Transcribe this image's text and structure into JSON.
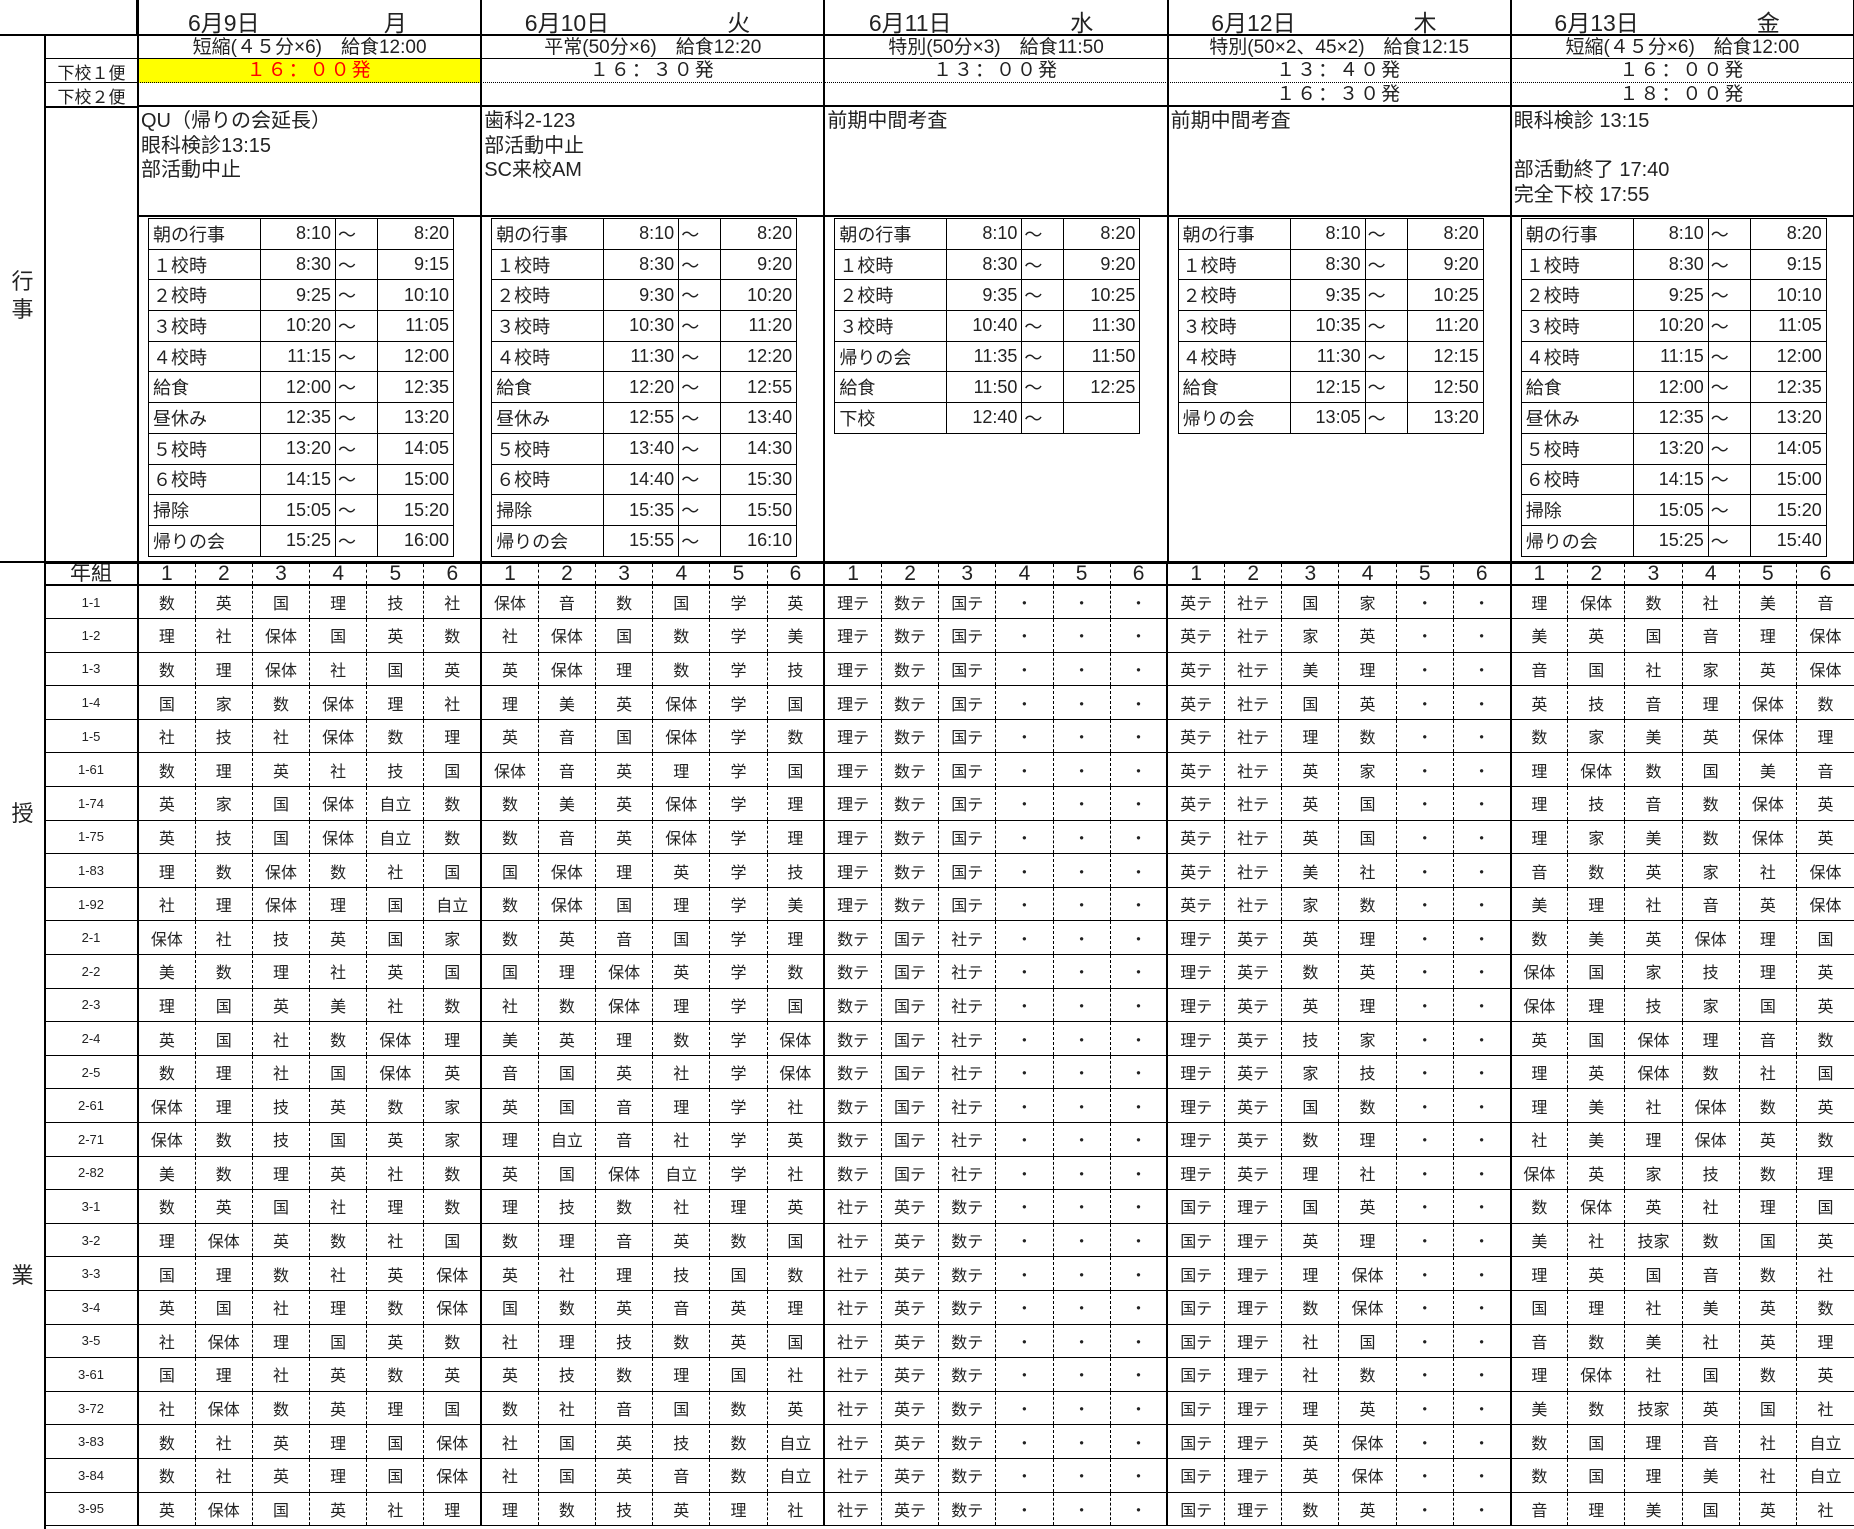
{
  "labels": {
    "bus1": "下校１便",
    "bus2": "下校２便",
    "section_events": [
      "行",
      "事"
    ],
    "section_classes_1": "授",
    "section_classes_2": "業",
    "class_header": "年組",
    "periods": [
      "1",
      "2",
      "3",
      "4",
      "5",
      "6"
    ]
  },
  "colors": {
    "highlight_bg": "#ffff00",
    "highlight_text": "#ff0000"
  },
  "days": [
    {
      "date": "6月9日",
      "weekday": "月",
      "mode": "短縮(４５分×6)　給食12:00",
      "bus1": "１６：００発",
      "bus1_highlight": true,
      "bus2": "",
      "notes": [
        "QU（帰りの会延長）",
        "眼科検診13:15",
        "部活動中止"
      ],
      "schedule": [
        [
          "朝の行事",
          "8:10",
          "～",
          "8:20"
        ],
        [
          "１校時",
          "8:30",
          "～",
          "9:15"
        ],
        [
          "２校時",
          "9:25",
          "～",
          "10:10"
        ],
        [
          "３校時",
          "10:20",
          "～",
          "11:05"
        ],
        [
          "４校時",
          "11:15",
          "～",
          "12:00"
        ],
        [
          "給食",
          "12:00",
          "～",
          "12:35"
        ],
        [
          "昼休み",
          "12:35",
          "～",
          "13:20"
        ],
        [
          "５校時",
          "13:20",
          "～",
          "14:05"
        ],
        [
          "６校時",
          "14:15",
          "～",
          "15:00"
        ],
        [
          "掃除",
          "15:05",
          "～",
          "15:20"
        ],
        [
          "帰りの会",
          "15:25",
          "～",
          "16:00"
        ]
      ]
    },
    {
      "date": "6月10日",
      "weekday": "火",
      "mode": "平常(50分×6)　給食12:20",
      "bus1": "１６：３０発",
      "bus1_highlight": false,
      "bus2": "",
      "notes": [
        "歯科2-123",
        "部活動中止",
        "SC来校AM"
      ],
      "schedule": [
        [
          "朝の行事",
          "8:10",
          "～",
          "8:20"
        ],
        [
          "１校時",
          "8:30",
          "～",
          "9:20"
        ],
        [
          "２校時",
          "9:30",
          "～",
          "10:20"
        ],
        [
          "３校時",
          "10:30",
          "～",
          "11:20"
        ],
        [
          "４校時",
          "11:30",
          "～",
          "12:20"
        ],
        [
          "給食",
          "12:20",
          "～",
          "12:55"
        ],
        [
          "昼休み",
          "12:55",
          "～",
          "13:40"
        ],
        [
          "５校時",
          "13:40",
          "～",
          "14:30"
        ],
        [
          "６校時",
          "14:40",
          "～",
          "15:30"
        ],
        [
          "掃除",
          "15:35",
          "～",
          "15:50"
        ],
        [
          "帰りの会",
          "15:55",
          "～",
          "16:10"
        ]
      ]
    },
    {
      "date": "6月11日",
      "weekday": "水",
      "mode": "特別(50分×3)　給食11:50",
      "bus1": "１３：００発",
      "bus1_highlight": false,
      "bus2": "",
      "notes": [
        "前期中間考査"
      ],
      "schedule": [
        [
          "朝の行事",
          "8:10",
          "～",
          "8:20"
        ],
        [
          "１校時",
          "8:30",
          "～",
          "9:20"
        ],
        [
          "２校時",
          "9:35",
          "～",
          "10:25"
        ],
        [
          "３校時",
          "10:40",
          "～",
          "11:30"
        ],
        [
          "帰りの会",
          "11:35",
          "～",
          "11:50"
        ],
        [
          "給食",
          "11:50",
          "～",
          "12:25"
        ],
        [
          "下校",
          "12:40",
          "～",
          ""
        ]
      ]
    },
    {
      "date": "6月12日",
      "weekday": "木",
      "mode": "特別(50×2、45×2)　給食12:15",
      "bus1": "１３：４０発",
      "bus1_highlight": false,
      "bus2": "１６：３０発",
      "notes": [
        "前期中間考査"
      ],
      "schedule": [
        [
          "朝の行事",
          "8:10",
          "～",
          "8:20"
        ],
        [
          "１校時",
          "8:30",
          "～",
          "9:20"
        ],
        [
          "２校時",
          "9:35",
          "～",
          "10:25"
        ],
        [
          "３校時",
          "10:35",
          "～",
          "11:20"
        ],
        [
          "４校時",
          "11:30",
          "～",
          "12:15"
        ],
        [
          "給食",
          "12:15",
          "～",
          "12:50"
        ],
        [
          "帰りの会",
          "13:05",
          "～",
          "13:20"
        ]
      ]
    },
    {
      "date": "6月13日",
      "weekday": "金",
      "mode": "短縮(４５分×6)　給食12:00",
      "bus1": "１６：００発",
      "bus1_highlight": false,
      "bus2": "１８：００発",
      "notes": [
        "眼科検診 13:15",
        "",
        "部活動終了 17:40",
        "完全下校 17:55"
      ],
      "schedule": [
        [
          "朝の行事",
          "8:10",
          "～",
          "8:20"
        ],
        [
          "１校時",
          "8:30",
          "～",
          "9:15"
        ],
        [
          "２校時",
          "9:25",
          "～",
          "10:10"
        ],
        [
          "３校時",
          "10:20",
          "～",
          "11:05"
        ],
        [
          "４校時",
          "11:15",
          "～",
          "12:00"
        ],
        [
          "給食",
          "12:00",
          "～",
          "12:35"
        ],
        [
          "昼休み",
          "12:35",
          "～",
          "13:20"
        ],
        [
          "５校時",
          "13:20",
          "～",
          "14:05"
        ],
        [
          "６校時",
          "14:15",
          "～",
          "15:00"
        ],
        [
          "掃除",
          "15:05",
          "～",
          "15:20"
        ],
        [
          "帰りの会",
          "15:25",
          "～",
          "15:40"
        ]
      ]
    }
  ],
  "timetable": [
    {
      "class": "1-1",
      "days": [
        "数 英 国 理 技 社",
        "保体 音 数 国 学 英",
        "理テ 数テ 国テ ・ ・ ・",
        "英テ 社テ 国 家 ・ ・",
        "理 保体 数 社 美 音"
      ]
    },
    {
      "class": "1-2",
      "days": [
        "理 社 保体 国 英 数",
        "社 保体 国 数 学 美",
        "理テ 数テ 国テ ・ ・ ・",
        "英テ 社テ 家 英 ・ ・",
        "美 英 国 音 理 保体"
      ]
    },
    {
      "class": "1-3",
      "days": [
        "数 理 保体 社 国 英",
        "英 保体 理 数 学 技",
        "理テ 数テ 国テ ・ ・ ・",
        "英テ 社テ 美 理 ・ ・",
        "音 国 社 家 英 保体"
      ]
    },
    {
      "class": "1-4",
      "days": [
        "国 家 数 保体 理 社",
        "理 美 英 保体 学 国",
        "理テ 数テ 国テ ・ ・ ・",
        "英テ 社テ 国 英 ・ ・",
        "英 技 音 理 保体 数"
      ]
    },
    {
      "class": "1-5",
      "days": [
        "社 技 社 保体 数 理",
        "英 音 国 保体 学 数",
        "理テ 数テ 国テ ・ ・ ・",
        "英テ 社テ 理 数 ・ ・",
        "数 家 美 英 保体 理"
      ]
    },
    {
      "class": "1-61",
      "days": [
        "数 理 英 社 技 国",
        "保体 音 英 理 学 国",
        "理テ 数テ 国テ ・ ・ ・",
        "英テ 社テ 英 家 ・ ・",
        "理 保体 数 国 美 音"
      ]
    },
    {
      "class": "1-74",
      "days": [
        "英 家 国 保体 自立 数",
        "数 美 英 保体 学 理",
        "理テ 数テ 国テ ・ ・ ・",
        "英テ 社テ 英 国 ・ ・",
        "理 技 音 数 保体 英"
      ]
    },
    {
      "class": "1-75",
      "days": [
        "英 技 国 保体 自立 数",
        "数 音 英 保体 学 理",
        "理テ 数テ 国テ ・ ・ ・",
        "英テ 社テ 英 国 ・ ・",
        "理 家 美 数 保体 英"
      ]
    },
    {
      "class": "1-83",
      "days": [
        "理 数 保体 数 社 国",
        "国 保体 理 英 学 技",
        "理テ 数テ 国テ ・ ・ ・",
        "英テ 社テ 美 社 ・ ・",
        "音 数 英 家 社 保体"
      ]
    },
    {
      "class": "1-92",
      "days": [
        "社 理 保体 理 国 自立",
        "数 保体 国 理 学 美",
        "理テ 数テ 国テ ・ ・ ・",
        "英テ 社テ 家 数 ・ ・",
        "美 理 社 音 英 保体"
      ]
    },
    {
      "class": "2-1",
      "days": [
        "保体 社 技 英 国 家",
        "数 英 音 国 学 理",
        "数テ 国テ 社テ ・ ・ ・",
        "理テ 英テ 英 理 ・ ・",
        "数 美 英 保体 理 国"
      ]
    },
    {
      "class": "2-2",
      "days": [
        "美 数 理 社 英 国",
        "国 理 保体 英 学 数",
        "数テ 国テ 社テ ・ ・ ・",
        "理テ 英テ 数 英 ・ ・",
        "保体 国 家 技 理 英"
      ]
    },
    {
      "class": "2-3",
      "days": [
        "理 国 英 美 社 数",
        "社 数 保体 理 学 国",
        "数テ 国テ 社テ ・ ・ ・",
        "理テ 英テ 英 理 ・ ・",
        "保体 理 技 家 国 英"
      ]
    },
    {
      "class": "2-4",
      "days": [
        "英 国 社 数 保体 理",
        "美 英 理 数 学 保体",
        "数テ 国テ 社テ ・ ・ ・",
        "理テ 英テ 技 家 ・ ・",
        "英 国 保体 理 音 数"
      ]
    },
    {
      "class": "2-5",
      "days": [
        "数 理 社 国 保体 英",
        "音 国 英 社 学 保体",
        "数テ 国テ 社テ ・ ・ ・",
        "理テ 英テ 家 技 ・ ・",
        "理 英 保体 数 社 国"
      ]
    },
    {
      "class": "2-61",
      "days": [
        "保体 理 技 英 数 家",
        "英 国 音 理 学 社",
        "数テ 国テ 社テ ・ ・ ・",
        "理テ 英テ 国 数 ・ ・",
        "理 美 社 保体 数 英"
      ]
    },
    {
      "class": "2-71",
      "days": [
        "保体 数 技 国 英 家",
        "理 自立 音 社 学 英",
        "数テ 国テ 社テ ・ ・ ・",
        "理テ 英テ 数 理 ・ ・",
        "社 美 理 保体 英 数"
      ]
    },
    {
      "class": "2-82",
      "days": [
        "美 数 理 英 社 数",
        "英 国 保体 自立 学 社",
        "数テ 国テ 社テ ・ ・ ・",
        "理テ 英テ 理 社 ・ ・",
        "保体 英 家 技 数 理"
      ]
    },
    {
      "class": "3-1",
      "days": [
        "数 英 国 社 理 数",
        "理 技 数 社 理 英",
        "社テ 英テ 数テ ・ ・ ・",
        "国テ 理テ 国 英 ・ ・",
        "数 保体 英 社 理 国"
      ]
    },
    {
      "class": "3-2",
      "days": [
        "理 保体 英 数 社 国",
        "数 理 音 英 数 国",
        "社テ 英テ 数テ ・ ・ ・",
        "国テ 理テ 英 理 ・ ・",
        "美 社 技家 数 国 英"
      ]
    },
    {
      "class": "3-3",
      "days": [
        "国 理 数 社 英 保体",
        "英 社 理 技 国 数",
        "社テ 英テ 数テ ・ ・ ・",
        "国テ 理テ 理 保体 ・ ・",
        "理 英 国 音 数 社"
      ]
    },
    {
      "class": "3-4",
      "days": [
        "英 国 社 理 数 保体",
        "国 数 英 音 英 理",
        "社テ 英テ 数テ ・ ・ ・",
        "国テ 理テ 数 保体 ・ ・",
        "国 理 社 美 英 数"
      ]
    },
    {
      "class": "3-5",
      "days": [
        "社 保体 理 国 英 数",
        "社 理 技 数 英 国",
        "社テ 英テ 数テ ・ ・ ・",
        "国テ 理テ 社 国 ・ ・",
        "音 数 美 社 英 理"
      ]
    },
    {
      "class": "3-61",
      "days": [
        "国 理 社 英 数 英",
        "英 技 数 理 国 社",
        "社テ 英テ 数テ ・ ・ ・",
        "国テ 理テ 社 数 ・ ・",
        "理 保体 社 国 数 英"
      ]
    },
    {
      "class": "3-72",
      "days": [
        "社 保体 数 英 理 国",
        "数 社 音 国 数 英",
        "社テ 英テ 数テ ・ ・ ・",
        "国テ 理テ 理 英 ・ ・",
        "美 数 技家 英 国 社"
      ]
    },
    {
      "class": "3-83",
      "days": [
        "数 社 英 理 国 保体",
        "社 国 英 技 数 自立",
        "社テ 英テ 数テ ・ ・ ・",
        "国テ 理テ 英 保体 ・ ・",
        "数 国 理 音 社 自立"
      ]
    },
    {
      "class": "3-84",
      "days": [
        "数 社 英 理 国 保体",
        "社 国 英 音 数 自立",
        "社テ 英テ 数テ ・ ・ ・",
        "国テ 理テ 英 保体 ・ ・",
        "数 国 理 美 社 自立"
      ]
    },
    {
      "class": "3-95",
      "days": [
        "英 保体 国 英 社 理",
        "理 数 技 英 理 社",
        "社テ 英テ 数テ ・ ・ ・",
        "国テ 理テ 数 英 ・ ・",
        "音 理 美 国 英 社"
      ]
    }
  ]
}
